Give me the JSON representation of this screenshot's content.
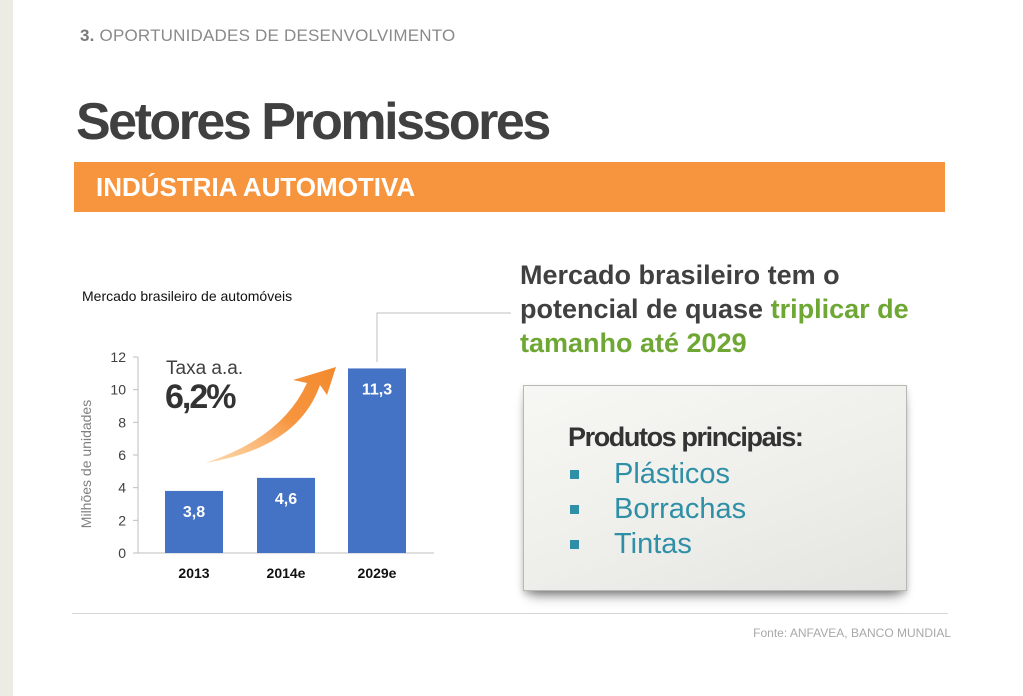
{
  "header": {
    "section_number": "3.",
    "section_label": "OPORTUNIDADES DE DESENVOLVIMENTO",
    "title": "Setores Promissores",
    "banner": "INDÚSTRIA AUTOMOTIVA"
  },
  "chart_data": {
    "type": "bar",
    "title": "Mercado brasileiro de automóveis",
    "ylabel": "Milhões de unidades",
    "xlabel": "",
    "categories": [
      "2013",
      "2014e",
      "2029e"
    ],
    "values": [
      3.8,
      4.6,
      11.3
    ],
    "value_labels": [
      "3,8",
      "4,6",
      "11,3"
    ],
    "ylim": [
      0,
      12
    ],
    "yticks": [
      0,
      2,
      4,
      6,
      8,
      10,
      12
    ],
    "bar_color": "#4472c4",
    "annotation": {
      "label": "Taxa a.a.",
      "value": "6,2%",
      "arrow_color": "#f7953f"
    }
  },
  "headline": {
    "part1": "Mercado brasileiro tem o potencial  de quase ",
    "highlight": "triplicar de tamanho até 2029",
    "highlight_color": "#6ea734"
  },
  "products": {
    "title": "Produtos principais:",
    "items": [
      "Plásticos",
      "Borrachas",
      "Tintas"
    ],
    "bullet_color": "#2e8fa6"
  },
  "footer": {
    "source": "Fonte: ANFAVEA, BANCO MUNDIAL"
  }
}
